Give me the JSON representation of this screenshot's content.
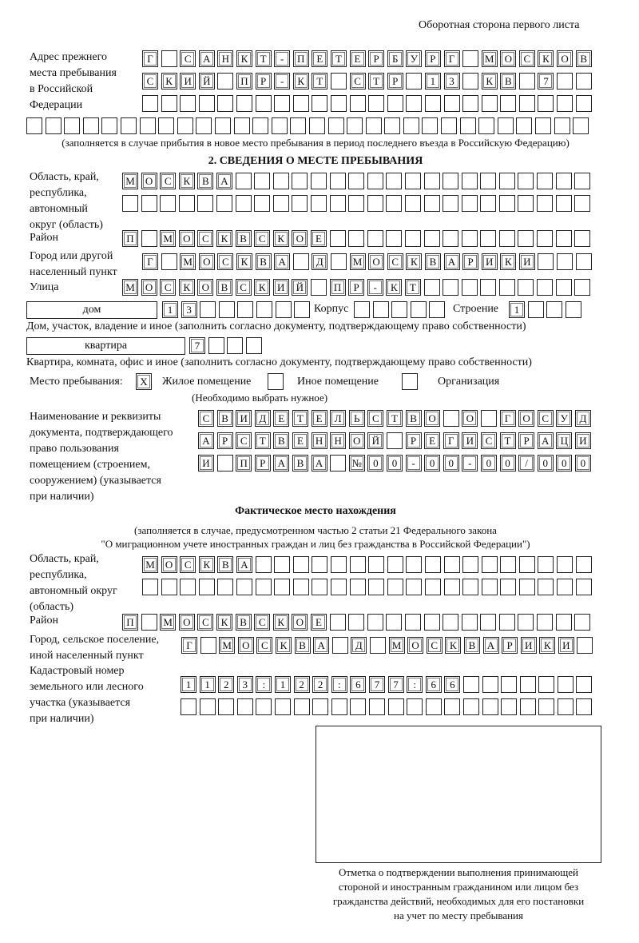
{
  "header": {
    "side_note": "Оборотная сторона первого листа"
  },
  "previous_address": {
    "label": "Адрес прежнего\nместа пребывания\nв Российской\nФедерации",
    "rows": [
      "Г САНКТ-ПЕТЕРБУРГ МОСКОВ",
      "СКИЙ ПР-КТ СТР 13 КВ 7  ",
      "                        ",
      "                              "
    ],
    "note": "(заполняется в случае прибытия в новое место пребывания в период последнего въезда в Российскую Федерацию)"
  },
  "section2": {
    "title": "2. СВЕДЕНИЯ О МЕСТЕ ПРЕБЫВАНИЯ",
    "region_label": "Область, край,\nреспублика,\nавтономный\nокруг (область)",
    "region_rows": [
      "МОСКВА                   ",
      "                         "
    ],
    "district_label": "Район",
    "district_row": "П МОСКВСКОЕ              ",
    "city_label": "Город или другой\nнаселенный пункт",
    "city_row": "Г МОСКВА Д МОСКВАРИКИ   ",
    "street_label": "Улица",
    "street_row": "МОСКОВСКИЙ ПР-КТ         ",
    "house_type": "дом",
    "house_cells": "13      ",
    "building_label": "Корпус",
    "building_cells": "     ",
    "structure_label": "Строение",
    "structure_cells": "1   ",
    "house_caption": "Дом, участок, владение и иное (заполнить согласно документу, подтверждающему право собственности)",
    "apt_type": "квартира",
    "apt_cells": "7   ",
    "apt_caption": "Квартира, комната, офис и иное (заполнить согласно документу, подтверждающему право собственности)",
    "stay_label": "Место пребывания:",
    "stay_options": [
      {
        "label": "Жилое помещение",
        "mark": "X",
        "checked": true
      },
      {
        "label": "Иное помещение",
        "mark": "",
        "checked": false
      },
      {
        "label": "Организация",
        "mark": "",
        "checked": false
      }
    ],
    "stay_hint": "(Необходимо выбрать нужное)",
    "doc_label": "Наименование и реквизиты\nдокумента, подтверждающего\nправо пользования\nпомещением (строением,\nсооружением) (указывается\nпри наличии)",
    "doc_rows": [
      "СВИДЕТЕЛЬСТВО О ГОСУД",
      "АРСТВЕННОЙ РЕГИСТРАЦИ",
      "И ПРАВА №00-00-00/000"
    ]
  },
  "actual": {
    "title": "Фактическое место нахождения",
    "subtitle1": "(заполняется в случае, предусмотренном частью 2 статьи 21 Федерального закона",
    "subtitle2": "\"О миграционном учете иностранных граждан и лиц без гражданства в Российской Федерации\")",
    "region_label": "Область, край,\nреспублика,\nавтономный округ\n(область)",
    "region_rows": [
      "МОСКВА                  ",
      "                        "
    ],
    "district_label": "Район",
    "district_row": "П МОСКВСКОЕ              ",
    "city_label": "Город, сельское поселение,\nиной населенный пункт",
    "city_row": "Г МОСКВА Д МОСКВАРИКИ ",
    "cadastral_label": "Кадастровый номер\nземельного или лесного\nучастка (указывается\nпри наличии)",
    "cadastral_rows": [
      "1123:122:677:66       ",
      "                      "
    ]
  },
  "stamp": {
    "caption": "Отметка о подтверждении выполнения принимающей\nстороной и иностранным гражданином или лицом без\nгражданства действий, необходимых для его постановки\nна учет по месту пребывания"
  }
}
